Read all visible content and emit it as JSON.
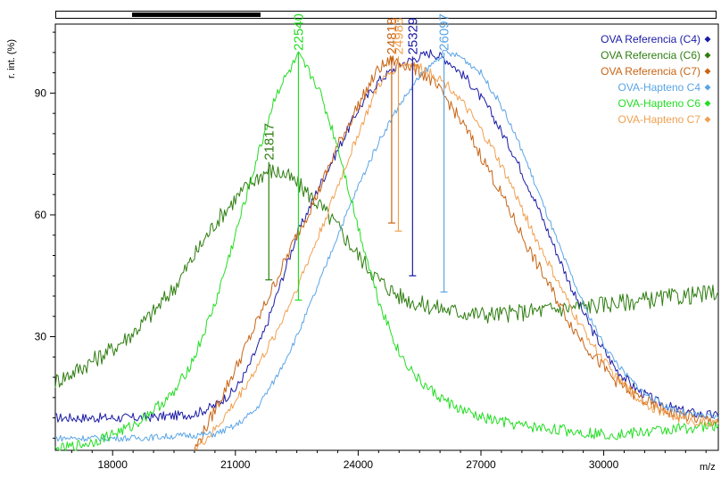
{
  "chart_data": {
    "type": "line",
    "ylabel": "r. int. (%)",
    "xlabel": "m/z",
    "xlim": [
      16600,
      32800
    ],
    "ylim": [
      2,
      107
    ],
    "x_ticks": [
      18000,
      21000,
      24000,
      27000,
      30000
    ],
    "y_ticks": [
      30,
      60,
      90
    ],
    "x_tick_labels": [
      "18000",
      "21000",
      "24000",
      "27000",
      "30000"
    ],
    "y_tick_labels": [
      "30",
      "60",
      "90"
    ],
    "legend_position": "top-right",
    "series": [
      {
        "name": "OVA Referencia (C4)",
        "color": "#1a1aa6",
        "x": [
          16600,
          17500,
          18500,
          19500,
          20000,
          20500,
          21000,
          21300,
          21700,
          22000,
          22500,
          23000,
          23500,
          24000,
          24500,
          25000,
          25500,
          25800,
          26200,
          26700,
          27200,
          27800,
          28300,
          28800,
          29300,
          29800,
          30300,
          30800,
          31300,
          31800,
          32300,
          32800
        ],
        "y": [
          10,
          10,
          10,
          10.5,
          11,
          13,
          17,
          22,
          31,
          40,
          55,
          66,
          76,
          86,
          93,
          97,
          99,
          100,
          98,
          93,
          86,
          75,
          64,
          52,
          40,
          30,
          22,
          17,
          14,
          12,
          11,
          10.5
        ]
      },
      {
        "name": "OVA Referencia (C6)",
        "color": "#2e7d10",
        "x": [
          16600,
          17000,
          17500,
          18000,
          18500,
          19000,
          19500,
          20000,
          20500,
          21000,
          21500,
          21817,
          22200,
          22600,
          23000,
          23500,
          24000,
          24500,
          25000,
          25500,
          26000,
          26500,
          27000,
          27500,
          28000,
          28500,
          29000,
          29500,
          30000,
          30500,
          31000,
          31500,
          32000,
          32500,
          32800
        ],
        "y": [
          19,
          21,
          24,
          27,
          31,
          36,
          42,
          50,
          58,
          64,
          69,
          71,
          70,
          67,
          63,
          57,
          50,
          44,
          40,
          38,
          37,
          36,
          35.5,
          35.5,
          36,
          36.5,
          37,
          37.5,
          38,
          38.5,
          39,
          39.5,
          40,
          40.5,
          41
        ]
      },
      {
        "name": "OVA Referencia (C7)",
        "color": "#c86414",
        "x": [
          20000,
          20500,
          21000,
          21500,
          22000,
          22500,
          23000,
          23500,
          24000,
          24500,
          24818,
          25200,
          25700,
          26200,
          26700,
          27200,
          27700,
          28200,
          28700,
          29200,
          29700,
          30200,
          30700,
          31200,
          31700,
          32200,
          32800
        ],
        "y": [
          2,
          12,
          22,
          33,
          44,
          55,
          65,
          77,
          87,
          96,
          98,
          97,
          94,
          88,
          80,
          71,
          61,
          51,
          42,
          33,
          26,
          20,
          16,
          13,
          11,
          10,
          9
        ]
      },
      {
        "name": "OVA-Hapteno C4",
        "color": "#5aa5e6",
        "x": [
          16600,
          17500,
          18500,
          19500,
          20500,
          21000,
          21500,
          22000,
          22500,
          23000,
          23500,
          24000,
          24500,
          25000,
          25500,
          26097,
          26500,
          27000,
          27500,
          28000,
          28500,
          29000,
          29500,
          30000,
          30500,
          31000,
          31500,
          32000,
          32800
        ],
        "y": [
          5,
          5,
          5,
          5.5,
          6,
          8,
          12,
          20,
          30,
          42,
          55,
          67,
          78,
          87,
          94,
          100,
          99,
          95,
          87,
          76,
          63,
          50,
          38,
          28,
          21,
          16,
          13,
          11,
          10
        ]
      },
      {
        "name": "OVA-Hapteno C6",
        "color": "#22dd22",
        "x": [
          16600,
          17500,
          18500,
          19500,
          20000,
          20500,
          21000,
          21500,
          22000,
          22540,
          23000,
          23500,
          24000,
          24500,
          25000,
          25500,
          26000,
          26500,
          27000,
          27500,
          28000,
          28500,
          29000,
          29500,
          30000,
          30500,
          31000,
          31500,
          32000,
          32800
        ],
        "y": [
          2,
          4,
          8,
          16,
          25,
          38,
          55,
          73,
          90,
          99,
          92,
          77,
          57,
          39,
          26,
          19,
          15,
          12,
          10,
          9,
          8,
          7.5,
          7,
          6.5,
          6,
          6,
          6.5,
          7,
          7.5,
          8
        ]
      },
      {
        "name": "OVA-Hapteno C7",
        "color": "#f0a050",
        "x": [
          20000,
          20500,
          21000,
          21500,
          22000,
          22500,
          23000,
          23500,
          24000,
          24500,
          24983,
          25300,
          25800,
          26300,
          26800,
          27300,
          27800,
          28300,
          28800,
          29300,
          29800,
          30300,
          30800,
          31300,
          31800,
          32300,
          32800
        ],
        "y": [
          2,
          7,
          14,
          22,
          31,
          42,
          54,
          67,
          80,
          92,
          97,
          97,
          95,
          91,
          84,
          76,
          66,
          55,
          45,
          35,
          27,
          20,
          15,
          12,
          10,
          9,
          8.5
        ]
      }
    ],
    "peaks": [
      {
        "label": "21817",
        "x": 21817,
        "y_top": 73,
        "y_bottom": 44,
        "color": "#2e7d10"
      },
      {
        "label": "22540",
        "x": 22540,
        "y_top": 100,
        "y_bottom": 39,
        "color": "#22dd22"
      },
      {
        "label": "24818",
        "x": 24818,
        "y_top": 99,
        "y_bottom": 58,
        "color": "#c86414"
      },
      {
        "label": "24983",
        "x": 24983,
        "y_top": 99,
        "y_bottom": 56,
        "color": "#f0a050"
      },
      {
        "label": "25329",
        "x": 25329,
        "y_top": 99,
        "y_bottom": 45,
        "color": "#1a1aa6"
      },
      {
        "label": "26097",
        "x": 26097,
        "y_top": 100,
        "y_bottom": 41,
        "color": "#5aa5e6"
      }
    ],
    "legend_markers": [
      "#1a1aa6",
      "#2e7d10",
      "#c86414",
      "#5aa5e6",
      "#22dd22",
      "#f0a050"
    ]
  }
}
